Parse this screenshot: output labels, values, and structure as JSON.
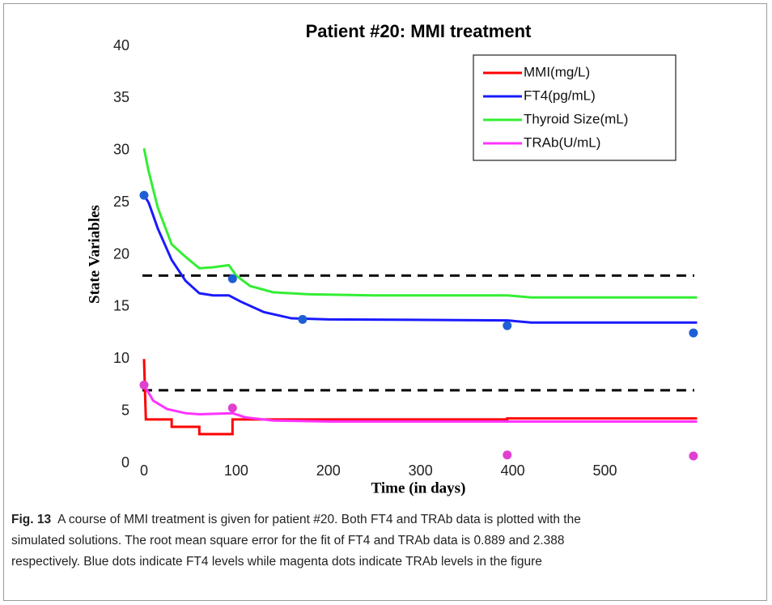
{
  "chart_data": {
    "type": "line",
    "title": "Patient #20: MMI treatment",
    "xlabel": "Time (in days)",
    "ylabel": "State Variables",
    "xlim": [
      -7,
      604
    ],
    "ylim": [
      0,
      40
    ],
    "xticks": [
      0,
      100,
      200,
      300,
      400,
      500
    ],
    "yticks": [
      0,
      5,
      10,
      15,
      20,
      25,
      30,
      35,
      40
    ],
    "legend": "upper right",
    "series": [
      {
        "name": "MMI(mg/L)",
        "color": "#ff0000",
        "x": [
          0,
          2,
          30,
          30,
          60,
          60,
          96,
          96,
          394,
          394,
          600
        ],
        "values": [
          10,
          4.2,
          4.2,
          3.5,
          3.5,
          2.8,
          2.8,
          4.2,
          4.2,
          4.3,
          4.3
        ]
      },
      {
        "name": "FT4(pg/mL)",
        "color": "#1a1aff",
        "x": [
          0,
          5,
          15,
          30,
          45,
          60,
          75,
          92,
          105,
          130,
          160,
          200,
          394,
          420,
          600
        ],
        "values": [
          25.7,
          25,
          22.5,
          19.5,
          17.5,
          16.3,
          16.1,
          16.1,
          15.5,
          14.5,
          13.9,
          13.8,
          13.7,
          13.5,
          13.5
        ]
      },
      {
        "name": "Thyroid Size(mL)",
        "color": "#33ee33",
        "x": [
          0,
          5,
          15,
          30,
          45,
          60,
          75,
          92,
          100,
          115,
          140,
          180,
          250,
          394,
          420,
          600
        ],
        "values": [
          30.2,
          28,
          24.5,
          21,
          19.8,
          18.7,
          18.8,
          19,
          18,
          17,
          16.4,
          16.2,
          16.1,
          16.1,
          15.9,
          15.9
        ]
      },
      {
        "name": "TRAb(U/mL)",
        "color": "#ff33ff",
        "x": [
          0,
          10,
          25,
          45,
          60,
          96,
          110,
          140,
          200,
          600
        ],
        "values": [
          7.5,
          6,
          5.2,
          4.8,
          4.7,
          4.8,
          4.4,
          4.1,
          4.0,
          4.0
        ]
      }
    ],
    "points": [
      {
        "color": "#1f5fd6",
        "x": [
          0,
          96,
          172,
          394,
          596
        ],
        "values": [
          25.7,
          17.7,
          13.8,
          13.2,
          12.5
        ]
      },
      {
        "color": "#e040d0",
        "x": [
          0,
          96,
          394,
          596
        ],
        "values": [
          7.5,
          5.3,
          0.8,
          0.7
        ]
      }
    ],
    "hlines": [
      18,
      7
    ]
  },
  "caption": {
    "label": "Fig. 13",
    "lines": [
      "A course of MMI treatment is given for patient #20. Both FT4 and TRAb data is plotted with the",
      "simulated solutions. The root mean square error for the fit of FT4 and TRAb data is 0.889 and 2.388",
      "respectively. Blue dots indicate FT4 levels while magenta dots indicate TRAb levels in the figure"
    ]
  }
}
